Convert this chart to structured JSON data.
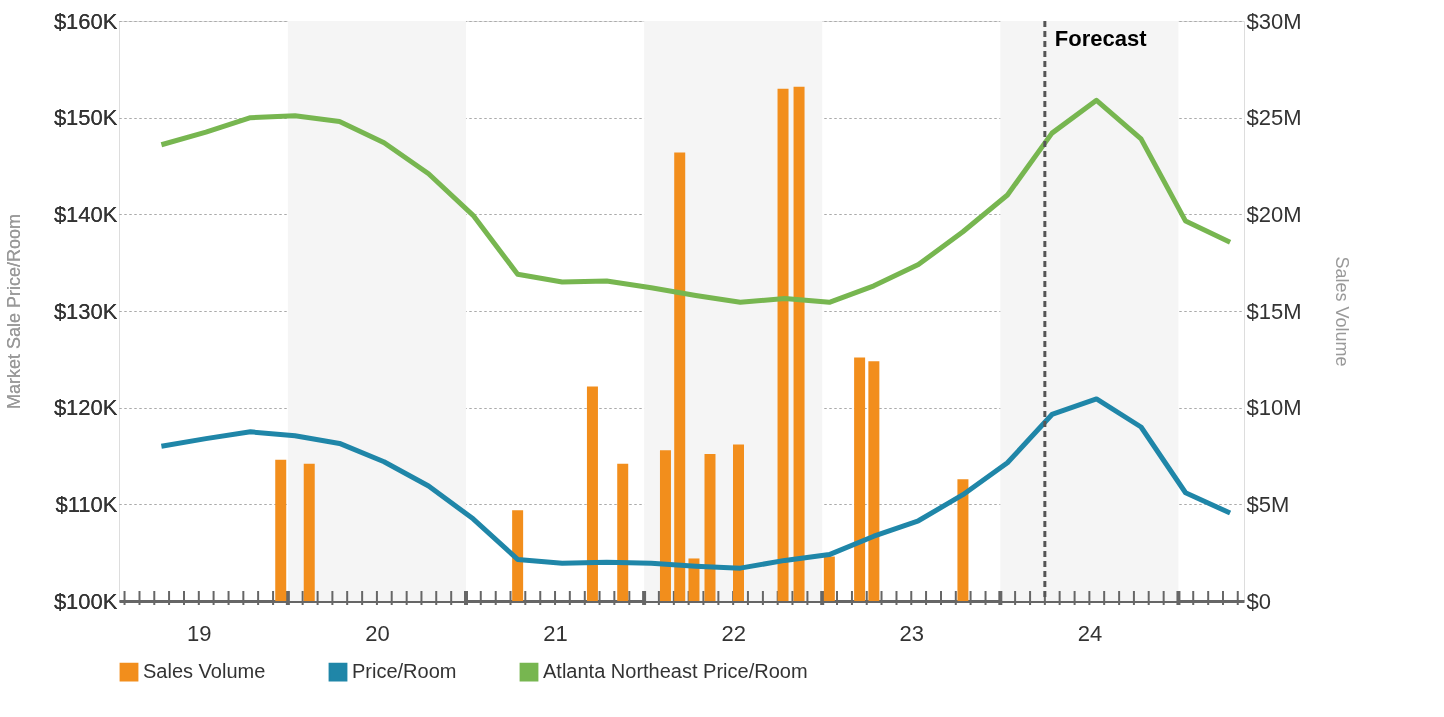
{
  "chart_data": {
    "type": "line",
    "ylabel": "Market Sale Price/Room",
    "y2label": "Sales Volume",
    "x": [
      18.79,
      19.04,
      19.29,
      19.54,
      19.79,
      20.04,
      20.29,
      20.54,
      20.79,
      21.04,
      21.29,
      21.54,
      21.79,
      22.04,
      22.29,
      22.54,
      22.79,
      23.04,
      23.29,
      23.54,
      23.79,
      24.04,
      24.29,
      24.54,
      24.79
    ],
    "series": [
      {
        "name": "Sales Volume",
        "type": "bar",
        "axis": "y2",
        "color": "#f28e1c",
        "x": [
          19.46,
          19.62,
          20.79,
          21.21,
          21.38,
          21.62,
          21.7,
          21.78,
          21.87,
          22.03,
          22.28,
          22.37,
          22.54,
          22.71,
          22.79,
          23.29
        ],
        "values": [
          7300000,
          7100000,
          4700000,
          11100000,
          7100000,
          7800000,
          23200000,
          2200000,
          7600000,
          8100000,
          26500000,
          26600000,
          2300000,
          12600000,
          12400000,
          6300000
        ]
      },
      {
        "name": "Price/Room",
        "color": "#1f86a8",
        "values": [
          116000,
          116800,
          117500,
          117100,
          116300,
          114400,
          111900,
          108500,
          104300,
          103900,
          104000,
          103900,
          103600,
          103400,
          104200,
          104800,
          106700,
          108300,
          111000,
          114300,
          119300,
          120900,
          118000,
          111200,
          109100
        ]
      },
      {
        "name": "Atlanta Northeast Price/Room",
        "color": "#77b650",
        "values": [
          147200,
          148500,
          150000,
          150200,
          149600,
          147400,
          144200,
          139900,
          133800,
          133000,
          133100,
          132400,
          131600,
          130900,
          131300,
          130900,
          132600,
          134800,
          138200,
          142000,
          148400,
          151800,
          147800,
          139300,
          137100
        ]
      }
    ],
    "xlim": [
      18.58,
      24.84
    ],
    "xticks": [
      {
        "value": 18.583,
        "label": null
      },
      {
        "value": 18.667,
        "label": null
      },
      {
        "value": 18.75,
        "label": null
      },
      {
        "value": 18.833,
        "label": null
      },
      {
        "value": 18.917,
        "label": null
      },
      19,
      {
        "value": 19.083,
        "label": null
      },
      {
        "value": 19.167,
        "label": null
      },
      {
        "value": 19.25,
        "label": null
      },
      {
        "value": 19.333,
        "label": null
      },
      {
        "value": 19.417,
        "label": null
      },
      {
        "value": 19.5,
        "label": null
      },
      {
        "value": 19.583,
        "label": null
      },
      {
        "value": 19.667,
        "label": null
      },
      {
        "value": 19.75,
        "label": null
      },
      {
        "value": 19.833,
        "label": null
      },
      {
        "value": 19.917,
        "label": null
      },
      20,
      {
        "value": 20.083,
        "label": null
      },
      {
        "value": 20.167,
        "label": null
      },
      {
        "value": 20.25,
        "label": null
      },
      {
        "value": 20.333,
        "label": null
      },
      {
        "value": 20.417,
        "label": null
      },
      {
        "value": 20.5,
        "label": null
      },
      {
        "value": 20.583,
        "label": null
      },
      {
        "value": 20.667,
        "label": null
      },
      {
        "value": 20.75,
        "label": null
      },
      {
        "value": 20.833,
        "label": null
      },
      {
        "value": 20.917,
        "label": null
      },
      21,
      {
        "value": 21.083,
        "label": null
      },
      {
        "value": 21.167,
        "label": null
      },
      {
        "value": 21.25,
        "label": null
      },
      {
        "value": 21.333,
        "label": null
      },
      {
        "value": 21.417,
        "label": null
      },
      {
        "value": 21.5,
        "label": null
      },
      {
        "value": 21.583,
        "label": null
      },
      {
        "value": 21.667,
        "label": null
      },
      {
        "value": 21.75,
        "label": null
      },
      {
        "value": 21.833,
        "label": null
      },
      {
        "value": 21.917,
        "label": null
      },
      22,
      {
        "value": 22.083,
        "label": null
      },
      {
        "value": 22.167,
        "label": null
      },
      {
        "value": 22.25,
        "label": null
      },
      {
        "value": 22.333,
        "label": null
      },
      {
        "value": 22.417,
        "label": null
      },
      {
        "value": 22.5,
        "label": null
      },
      {
        "value": 22.583,
        "label": null
      },
      {
        "value": 22.667,
        "label": null
      },
      {
        "value": 22.75,
        "label": null
      },
      {
        "value": 22.833,
        "label": null
      },
      {
        "value": 22.917,
        "label": null
      },
      23,
      {
        "value": 23.083,
        "label": null
      },
      {
        "value": 23.167,
        "label": null
      },
      {
        "value": 23.25,
        "label": null
      },
      {
        "value": 23.333,
        "label": null
      },
      {
        "value": 23.417,
        "label": null
      },
      {
        "value": 23.5,
        "label": null
      },
      {
        "value": 23.583,
        "label": null
      },
      {
        "value": 23.667,
        "label": null
      },
      {
        "value": 23.75,
        "label": null
      },
      {
        "value": 23.833,
        "label": null
      },
      {
        "value": 23.917,
        "label": null
      },
      24,
      {
        "value": 24.083,
        "label": null
      },
      {
        "value": 24.167,
        "label": null
      },
      {
        "value": 24.25,
        "label": null
      },
      {
        "value": 24.333,
        "label": null
      },
      {
        "value": 24.417,
        "label": null
      },
      {
        "value": 24.5,
        "label": null
      },
      {
        "value": 24.583,
        "label": null
      },
      {
        "value": 24.667,
        "label": null
      },
      {
        "value": 24.75,
        "label": null
      },
      {
        "value": 24.833,
        "label": null
      }
    ],
    "ylim": [
      100000,
      160000
    ],
    "yticks": [
      {
        "value": 100000,
        "label": "$100K"
      },
      {
        "value": 110000,
        "label": "$110K"
      },
      {
        "value": 120000,
        "label": "$120K"
      },
      {
        "value": 130000,
        "label": "$130K"
      },
      {
        "value": 140000,
        "label": "$140K"
      },
      {
        "value": 150000,
        "label": "$150K"
      },
      {
        "value": 160000,
        "label": "$160K"
      }
    ],
    "y2lim": [
      0,
      30000000
    ],
    "y2ticks": [
      {
        "value": 0,
        "label": "$0"
      },
      {
        "value": 5000000,
        "label": "$5M"
      },
      {
        "value": 10000000,
        "label": "$10M"
      },
      {
        "value": 15000000,
        "label": "$15M"
      },
      {
        "value": 20000000,
        "label": "$20M"
      },
      {
        "value": 25000000,
        "label": "$25M"
      },
      {
        "value": 30000000,
        "label": "$30M"
      }
    ],
    "bands": [
      {
        "axis": "x",
        "from": 19.5,
        "to": 20.5,
        "color": "#f5f5f5"
      },
      {
        "axis": "x",
        "from": 21.5,
        "to": 22.5,
        "color": "#f5f5f5"
      },
      {
        "axis": "x",
        "from": 23.5,
        "to": 24.5,
        "color": "#f5f5f5"
      }
    ],
    "ref_lines": [
      {
        "axis": "x",
        "value": 23.75,
        "label": "Forecast",
        "color": "#555555",
        "line_style": "dashed"
      }
    ],
    "grid": "y",
    "legend": "bottom",
    "marker": "none",
    "line_style": "solid"
  }
}
